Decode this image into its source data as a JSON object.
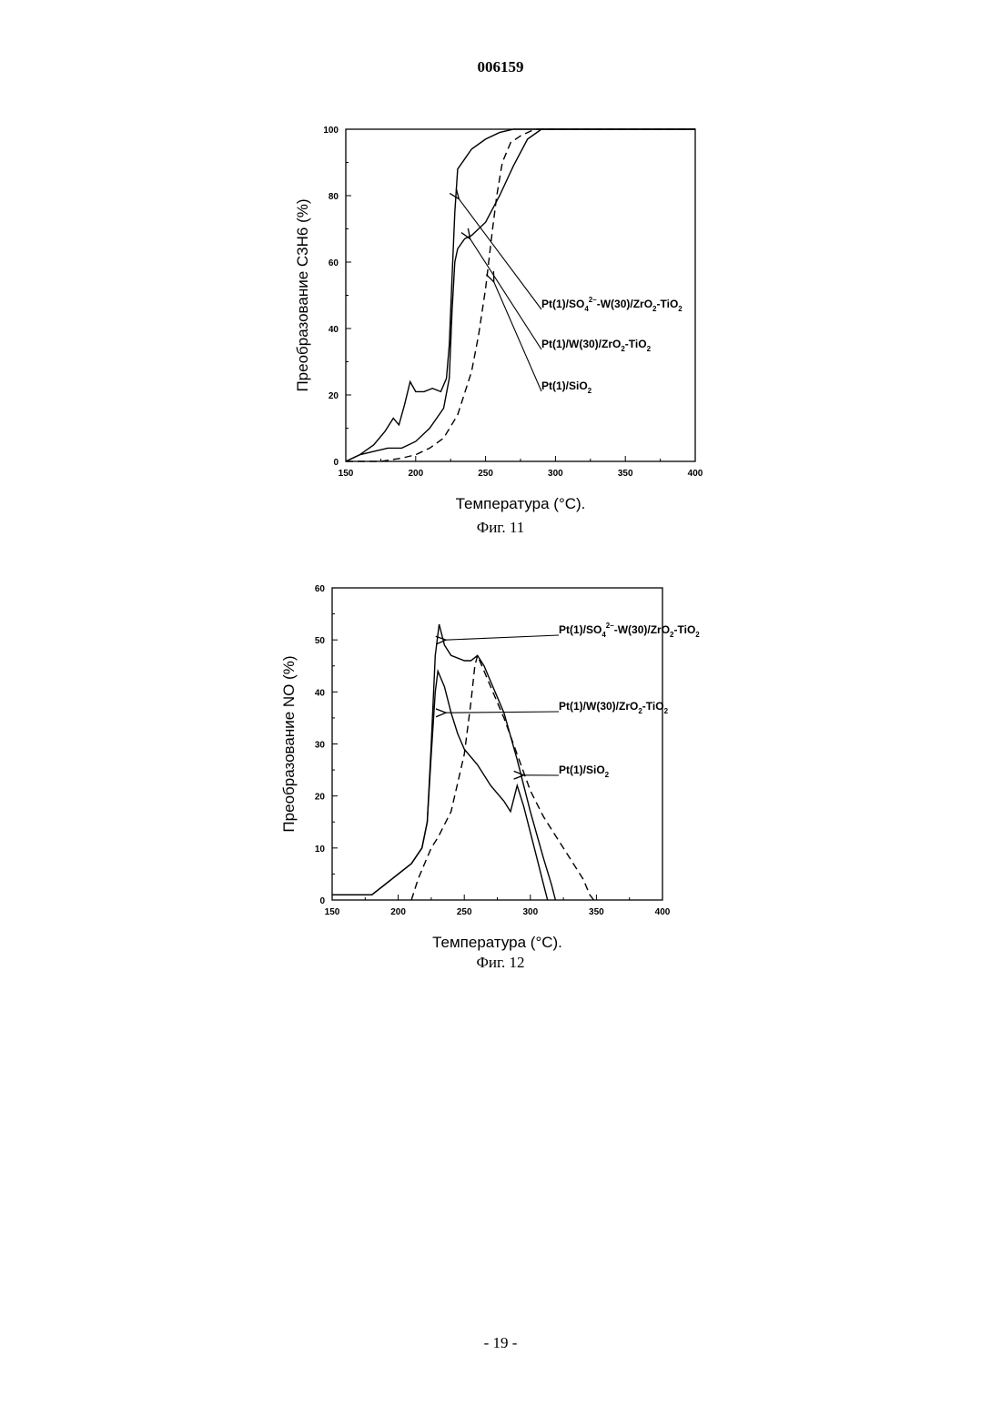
{
  "document": {
    "number": "006159",
    "page_number": "- 19 -"
  },
  "chart_data": [
    {
      "type": "line",
      "caption": "Фиг. 11",
      "xlabel": "Температура (°C).",
      "ylabel": "Преобразование C3H6 (%)",
      "xlim": [
        150,
        400
      ],
      "ylim": [
        0,
        100
      ],
      "xticks": [
        150,
        200,
        250,
        300,
        350,
        400
      ],
      "yticks": [
        0,
        20,
        40,
        60,
        80,
        100
      ],
      "grid": false,
      "series": [
        {
          "name": "Pt(1)/SO4 2–-W(30)/ZrO2-TiO2",
          "label_parts": [
            "Pt(1)/SO",
            "4",
            "2–",
            "-W(30)/ZrO",
            "2",
            "-TiO",
            "2"
          ],
          "style": "solid",
          "x": [
            150,
            160,
            170,
            178,
            184,
            188,
            192,
            196,
            200,
            206,
            212,
            218,
            222,
            224,
            226,
            228,
            230,
            235,
            240,
            250,
            260,
            270,
            280,
            290,
            400
          ],
          "y": [
            0,
            2,
            5,
            9,
            13,
            11,
            17,
            24,
            21,
            21,
            22,
            21,
            25,
            35,
            55,
            75,
            88,
            91,
            94,
            97,
            99,
            100,
            100,
            100,
            100
          ]
        },
        {
          "name": "Pt(1)/W(30)/ZrO2-TiO2",
          "label_parts": [
            "Pt(1)/W(30)/ZrO",
            "2",
            "-TiO",
            "2"
          ],
          "style": "solid",
          "x": [
            150,
            160,
            170,
            180,
            190,
            200,
            210,
            220,
            224,
            226,
            228,
            230,
            235,
            240,
            250,
            260,
            270,
            280,
            290,
            300,
            400
          ],
          "y": [
            0,
            2,
            3,
            4,
            4,
            6,
            10,
            16,
            25,
            45,
            60,
            64,
            67,
            68,
            72,
            80,
            89,
            97,
            100,
            100,
            100
          ],
          "arrow_at": [
            237,
            67
          ]
        },
        {
          "name": "Pt(1)/SiO2",
          "label_parts": [
            "Pt(1)/SiO",
            "2"
          ],
          "style": "dashed",
          "x": [
            150,
            165,
            175,
            190,
            200,
            210,
            220,
            230,
            240,
            245,
            250,
            255,
            258,
            262,
            268,
            275,
            285,
            300,
            400
          ],
          "y": [
            0,
            0,
            0,
            1,
            2,
            4,
            7,
            14,
            27,
            38,
            52,
            70,
            80,
            90,
            96,
            98,
            100,
            100,
            100
          ],
          "arrow_at": [
            254,
            54
          ]
        }
      ]
    },
    {
      "type": "line",
      "caption": "Фиг. 12",
      "xlabel": "Температура (°C).",
      "ylabel": "Преобразование NO (%)",
      "xlim": [
        150,
        400
      ],
      "ylim": [
        0,
        60
      ],
      "xticks": [
        150,
        200,
        250,
        300,
        350,
        400
      ],
      "yticks": [
        0,
        10,
        20,
        30,
        40,
        50,
        60
      ],
      "grid": false,
      "series": [
        {
          "name": "Pt(1)/SO4 2–-W(30)/ZrO2-TiO2",
          "label_parts": [
            "Pt(1)/SO",
            "4",
            "2–",
            "-W(30)/ZrO",
            "2",
            "-TiO",
            "2"
          ],
          "style": "solid",
          "x": [
            150,
            170,
            180,
            190,
            200,
            210,
            218,
            222,
            225,
            228,
            231,
            235,
            240,
            250,
            255,
            260,
            265,
            270,
            280,
            290,
            300,
            310,
            316,
            319
          ],
          "y": [
            1,
            1,
            1,
            3,
            5,
            7,
            10,
            15,
            30,
            47,
            53,
            49,
            47,
            46,
            46,
            47,
            45,
            42,
            36,
            27,
            17,
            8,
            3,
            0
          ],
          "arrow_at": [
            234,
            50
          ]
        },
        {
          "name": "Pt(1)/W(30)/ZrO2-TiO2",
          "label_parts": [
            "Pt(1)/W(30)/ZrO",
            "2",
            "-TiO",
            "2"
          ],
          "style": "solid",
          "x": [
            150,
            170,
            180,
            190,
            200,
            210,
            218,
            222,
            225,
            228,
            230,
            235,
            240,
            245,
            250,
            260,
            270,
            280,
            285,
            288,
            290,
            295,
            300,
            305,
            310,
            313
          ],
          "y": [
            1,
            1,
            1,
            3,
            5,
            7,
            10,
            15,
            28,
            40,
            44,
            41,
            36,
            32,
            29,
            26,
            22,
            19,
            17,
            20,
            22,
            18,
            13,
            8,
            3,
            0
          ],
          "arrow_at": [
            234,
            36
          ]
        },
        {
          "name": "Pt(1)/SiO2",
          "label_parts": [
            "Pt(1)/SiO",
            "2"
          ],
          "style": "dashed",
          "x": [
            210,
            215,
            220,
            225,
            230,
            240,
            250,
            255,
            258,
            260,
            265,
            270,
            280,
            290,
            300,
            310,
            320,
            330,
            340,
            345,
            348
          ],
          "y": [
            0,
            4,
            7,
            10,
            12,
            17,
            28,
            38,
            45,
            47,
            44,
            41,
            35,
            28,
            21,
            16,
            12,
            8,
            4,
            1,
            0
          ],
          "arrow_at": [
            293,
            24
          ]
        }
      ]
    }
  ]
}
